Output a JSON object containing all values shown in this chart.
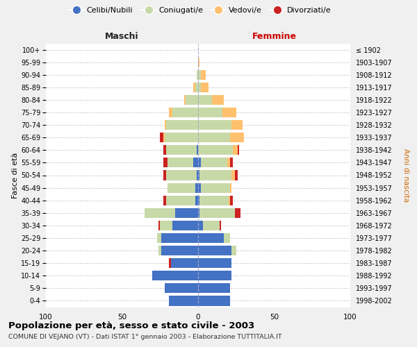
{
  "age_groups": [
    "0-4",
    "5-9",
    "10-14",
    "15-19",
    "20-24",
    "25-29",
    "30-34",
    "35-39",
    "40-44",
    "45-49",
    "50-54",
    "55-59",
    "60-64",
    "65-69",
    "70-74",
    "75-79",
    "80-84",
    "85-89",
    "90-94",
    "95-99",
    "100+"
  ],
  "birth_years": [
    "1998-2002",
    "1993-1997",
    "1988-1992",
    "1983-1987",
    "1978-1982",
    "1973-1977",
    "1968-1972",
    "1963-1967",
    "1958-1962",
    "1953-1957",
    "1948-1952",
    "1943-1947",
    "1938-1942",
    "1933-1937",
    "1928-1932",
    "1923-1927",
    "1918-1922",
    "1913-1917",
    "1908-1912",
    "1903-1907",
    "≤ 1902"
  ],
  "male_celibi": [
    19,
    22,
    30,
    18,
    24,
    24,
    17,
    15,
    2,
    2,
    1,
    3,
    1,
    0,
    0,
    0,
    0,
    0,
    0,
    0,
    0
  ],
  "male_coniugati": [
    0,
    0,
    0,
    0,
    2,
    3,
    8,
    20,
    19,
    18,
    20,
    17,
    20,
    22,
    21,
    17,
    8,
    2,
    1,
    0,
    0
  ],
  "male_vedovi": [
    0,
    0,
    0,
    0,
    0,
    0,
    0,
    0,
    0,
    0,
    0,
    0,
    0,
    1,
    1,
    2,
    1,
    1,
    0,
    0,
    0
  ],
  "male_divorziati": [
    0,
    0,
    0,
    1,
    0,
    0,
    1,
    0,
    2,
    0,
    2,
    3,
    2,
    2,
    0,
    0,
    0,
    0,
    0,
    0,
    0
  ],
  "fem_nubili": [
    21,
    21,
    22,
    22,
    22,
    17,
    3,
    1,
    1,
    2,
    1,
    2,
    0,
    0,
    0,
    0,
    0,
    0,
    0,
    0,
    0
  ],
  "fem_coniugate": [
    0,
    0,
    0,
    0,
    3,
    4,
    11,
    23,
    19,
    19,
    21,
    17,
    23,
    21,
    22,
    16,
    9,
    2,
    2,
    0,
    0
  ],
  "fem_vedove": [
    0,
    0,
    0,
    0,
    0,
    0,
    0,
    0,
    1,
    1,
    2,
    2,
    3,
    9,
    7,
    9,
    8,
    5,
    3,
    1,
    0
  ],
  "fem_divorziate": [
    0,
    0,
    0,
    0,
    0,
    0,
    1,
    4,
    2,
    0,
    2,
    2,
    1,
    0,
    0,
    0,
    0,
    0,
    0,
    0,
    0
  ],
  "col_celibi": "#4472c4",
  "col_coniugati": "#c8d9a8",
  "col_vedovi": "#ffc06e",
  "col_divorziati": "#cc2222",
  "xlim": 100,
  "title": "Popolazione per età, sesso e stato civile - 2003",
  "subtitle": "COMUNE DI VEJANO (VT) - Dati ISTAT 1° gennaio 2003 - Elaborazione TUTTITALIA.IT",
  "ylabel_left": "Fasce di età",
  "ylabel_right": "Anni di nascita",
  "label_maschi": "Maschi",
  "label_femmine": "Femmine",
  "legend_labels": [
    "Celibi/Nubili",
    "Coniugati/e",
    "Vedovi/e",
    "Divorziati/e"
  ],
  "bg_color": "#f0f0f0",
  "plot_bg": "#ffffff"
}
